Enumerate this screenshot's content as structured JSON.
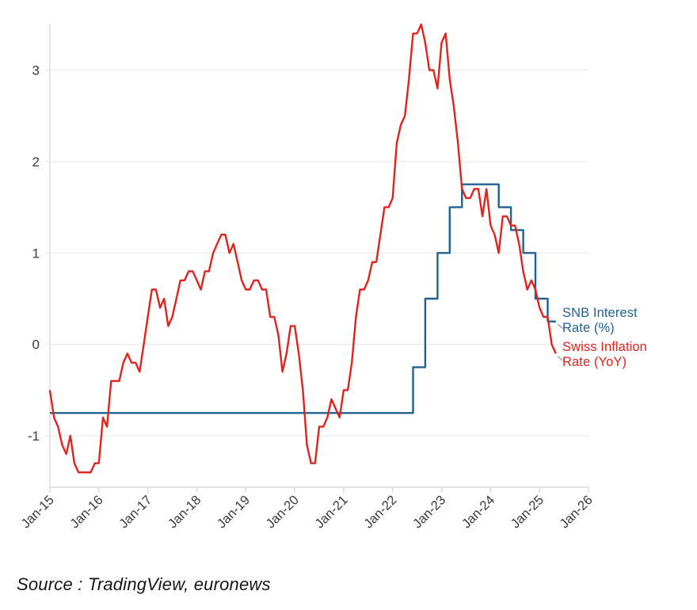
{
  "page": {
    "background": "#ffffff"
  },
  "source_note": "Source : TradingView, euronews",
  "colors": {
    "snb_blue": "#1f6290",
    "inflation_red": "#e0231c",
    "grid": "#ededed",
    "axis": "#dcdcdc",
    "tick_text": "#3a3a3a",
    "leader": "#9a9a9a",
    "background": "#ffffff"
  },
  "chart_data": {
    "type": "line",
    "title": "",
    "xlabel": "",
    "ylabel": "",
    "grid": "horizontal",
    "legend_position": "right-end-labels",
    "x_axis": {
      "tick_labels": [
        "Jan-15",
        "Jan-16",
        "Jan-17",
        "Jan-18",
        "Jan-19",
        "Jan-20",
        "Jan-21",
        "Jan-22",
        "Jan-23",
        "Jan-24",
        "Jan-25",
        "Jan-26"
      ],
      "range_months": 132,
      "start": "2015-01",
      "end": "2026-01"
    },
    "y_axis": {
      "ticks": [
        3,
        2,
        1,
        0,
        -1
      ],
      "ylim": [
        -1.56,
        3.56
      ]
    },
    "series": [
      {
        "name": "SNB Interest Rate (%)",
        "color": "#1f6290",
        "step": true,
        "start": "2015-01",
        "freq": "monthly",
        "values": [
          -0.75,
          -0.75,
          -0.75,
          -0.75,
          -0.75,
          -0.75,
          -0.75,
          -0.75,
          -0.75,
          -0.75,
          -0.75,
          -0.75,
          -0.75,
          -0.75,
          -0.75,
          -0.75,
          -0.75,
          -0.75,
          -0.75,
          -0.75,
          -0.75,
          -0.75,
          -0.75,
          -0.75,
          -0.75,
          -0.75,
          -0.75,
          -0.75,
          -0.75,
          -0.75,
          -0.75,
          -0.75,
          -0.75,
          -0.75,
          -0.75,
          -0.75,
          -0.75,
          -0.75,
          -0.75,
          -0.75,
          -0.75,
          -0.75,
          -0.75,
          -0.75,
          -0.75,
          -0.75,
          -0.75,
          -0.75,
          -0.75,
          -0.75,
          -0.75,
          -0.75,
          -0.75,
          -0.75,
          -0.75,
          -0.75,
          -0.75,
          -0.75,
          -0.75,
          -0.75,
          -0.75,
          -0.75,
          -0.75,
          -0.75,
          -0.75,
          -0.75,
          -0.75,
          -0.75,
          -0.75,
          -0.75,
          -0.75,
          -0.75,
          -0.75,
          -0.75,
          -0.75,
          -0.75,
          -0.75,
          -0.75,
          -0.75,
          -0.75,
          -0.75,
          -0.75,
          -0.75,
          -0.75,
          -0.75,
          -0.75,
          -0.75,
          -0.75,
          -0.75,
          -0.25,
          -0.25,
          -0.25,
          0.5,
          0.5,
          0.5,
          1.0,
          1.0,
          1.0,
          1.5,
          1.5,
          1.5,
          1.75,
          1.75,
          1.75,
          1.75,
          1.75,
          1.75,
          1.75,
          1.75,
          1.75,
          1.5,
          1.5,
          1.5,
          1.25,
          1.25,
          1.25,
          1.0,
          1.0,
          1.0,
          0.5,
          0.5,
          0.5,
          0.25,
          0.25,
          0.25
        ]
      },
      {
        "name": "Swiss Inflation Rate (YoY)",
        "color": "#e0231c",
        "step": false,
        "start": "2015-01",
        "freq": "monthly",
        "values": [
          -0.5,
          -0.8,
          -0.9,
          -1.1,
          -1.2,
          -1.0,
          -1.3,
          -1.4,
          -1.4,
          -1.4,
          -1.4,
          -1.3,
          -1.3,
          -0.8,
          -0.9,
          -0.4,
          -0.4,
          -0.4,
          -0.2,
          -0.1,
          -0.2,
          -0.2,
          -0.3,
          0.0,
          0.3,
          0.6,
          0.6,
          0.4,
          0.5,
          0.2,
          0.3,
          0.5,
          0.7,
          0.7,
          0.8,
          0.8,
          0.7,
          0.6,
          0.8,
          0.8,
          1.0,
          1.1,
          1.2,
          1.2,
          1.0,
          1.1,
          0.9,
          0.7,
          0.6,
          0.6,
          0.7,
          0.7,
          0.6,
          0.6,
          0.3,
          0.3,
          0.1,
          -0.3,
          -0.1,
          0.2,
          0.2,
          -0.1,
          -0.5,
          -1.1,
          -1.3,
          -1.3,
          -0.9,
          -0.9,
          -0.8,
          -0.6,
          -0.7,
          -0.8,
          -0.5,
          -0.5,
          -0.2,
          0.3,
          0.6,
          0.6,
          0.7,
          0.9,
          0.9,
          1.2,
          1.5,
          1.5,
          1.6,
          2.2,
          2.4,
          2.5,
          2.9,
          3.4,
          3.4,
          3.5,
          3.3,
          3.0,
          3.0,
          2.8,
          3.3,
          3.4,
          2.9,
          2.6,
          2.2,
          1.7,
          1.6,
          1.6,
          1.7,
          1.7,
          1.4,
          1.7,
          1.3,
          1.2,
          1.0,
          1.4,
          1.4,
          1.3,
          1.3,
          1.1,
          0.8,
          0.6,
          0.7,
          0.6,
          0.4,
          0.3,
          0.3,
          0.0,
          -0.1
        ]
      }
    ]
  }
}
